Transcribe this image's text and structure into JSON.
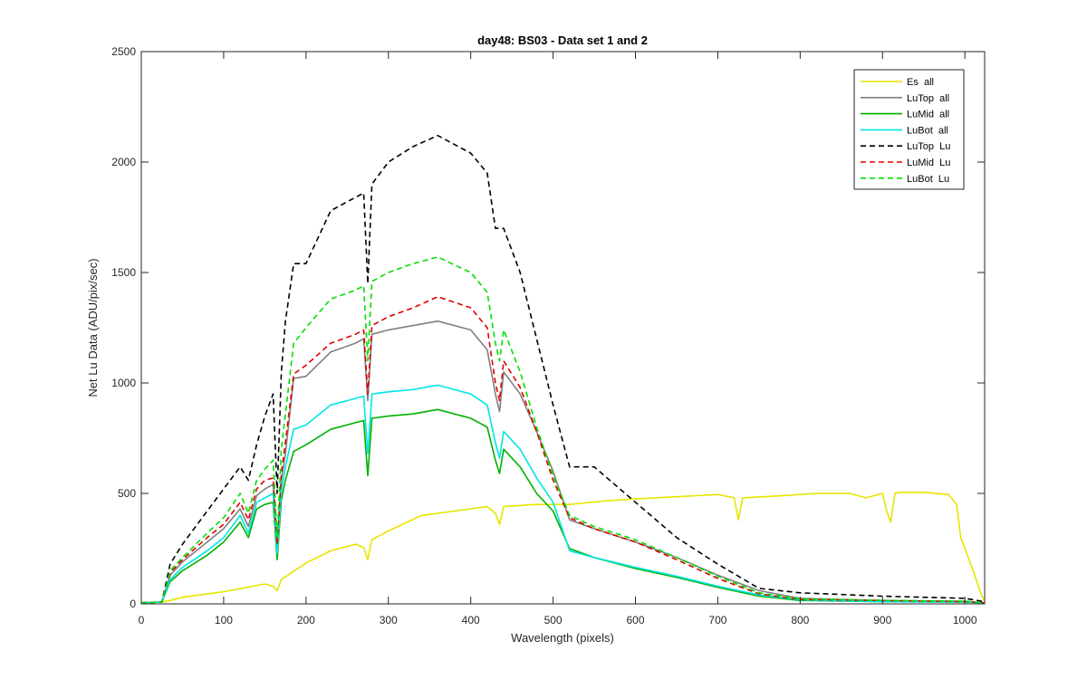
{
  "chart_data": {
    "type": "line",
    "title": "day48: BS03 - Data set 1 and 2",
    "xlabel": "Wavelength (pixels)",
    "ylabel": "Net Lu Data (ADU/pix/sec)",
    "xlim": [
      0,
      1024
    ],
    "ylim": [
      0,
      2500
    ],
    "xticks": [
      0,
      100,
      200,
      300,
      400,
      500,
      600,
      700,
      800,
      900,
      1000
    ],
    "yticks": [
      0,
      500,
      1000,
      1500,
      2000,
      2500
    ],
    "grid": false,
    "legend_position": "top-right",
    "series": [
      {
        "name": "Es  all",
        "color": "#e6e600",
        "style": "solid",
        "x": [
          0,
          25,
          35,
          50,
          100,
          150,
          160,
          165,
          170,
          200,
          230,
          260,
          270,
          275,
          280,
          300,
          340,
          380,
          420,
          430,
          435,
          440,
          480,
          520,
          560,
          600,
          650,
          700,
          720,
          725,
          730,
          780,
          820,
          860,
          880,
          900,
          905,
          910,
          915,
          920,
          950,
          980,
          990,
          995,
          1000,
          1010,
          1020,
          1024
        ],
        "y": [
          5,
          8,
          15,
          30,
          55,
          90,
          80,
          60,
          110,
          185,
          240,
          270,
          255,
          200,
          290,
          330,
          400,
          420,
          440,
          410,
          360,
          440,
          450,
          450,
          465,
          475,
          485,
          495,
          480,
          380,
          480,
          490,
          500,
          500,
          480,
          500,
          420,
          370,
          500,
          505,
          505,
          495,
          450,
          300,
          250,
          150,
          40,
          15
        ]
      },
      {
        "name": "LuTop  all",
        "color": "#808080",
        "style": "solid",
        "x": [
          0,
          25,
          35,
          50,
          80,
          100,
          120,
          130,
          140,
          150,
          160,
          165,
          170,
          175,
          185,
          200,
          230,
          260,
          270,
          275,
          280,
          300,
          330,
          360,
          400,
          420,
          430,
          435,
          440,
          460,
          480,
          500,
          520,
          550,
          600,
          650,
          700,
          750,
          800,
          900,
          1000,
          1024
        ],
        "y": [
          5,
          8,
          130,
          190,
          280,
          340,
          430,
          350,
          490,
          520,
          540,
          250,
          560,
          680,
          1020,
          1030,
          1140,
          1180,
          1200,
          920,
          1220,
          1240,
          1260,
          1280,
          1240,
          1150,
          950,
          870,
          1050,
          950,
          780,
          600,
          380,
          340,
          280,
          210,
          130,
          60,
          25,
          15,
          12,
          5
        ]
      },
      {
        "name": "LuMid  all",
        "color": "#00b000",
        "style": "solid",
        "x": [
          0,
          25,
          35,
          50,
          80,
          100,
          120,
          130,
          140,
          150,
          160,
          165,
          170,
          175,
          185,
          200,
          230,
          260,
          270,
          275,
          280,
          300,
          330,
          360,
          400,
          420,
          430,
          435,
          440,
          460,
          480,
          500,
          520,
          550,
          600,
          650,
          700,
          750,
          800,
          900,
          1000,
          1024
        ],
        "y": [
          5,
          8,
          100,
          150,
          220,
          280,
          370,
          300,
          430,
          450,
          460,
          200,
          470,
          560,
          690,
          720,
          790,
          820,
          830,
          580,
          840,
          850,
          860,
          880,
          840,
          800,
          650,
          590,
          700,
          620,
          500,
          420,
          250,
          210,
          160,
          120,
          75,
          35,
          15,
          10,
          8,
          4
        ]
      },
      {
        "name": "LuBot  all",
        "color": "#00e5e5",
        "style": "solid",
        "x": [
          0,
          25,
          35,
          50,
          80,
          100,
          120,
          130,
          140,
          150,
          160,
          165,
          170,
          175,
          185,
          200,
          230,
          260,
          270,
          275,
          280,
          300,
          330,
          360,
          400,
          420,
          430,
          435,
          440,
          460,
          480,
          500,
          520,
          550,
          600,
          650,
          700,
          750,
          800,
          900,
          1000,
          1024
        ],
        "y": [
          5,
          8,
          110,
          165,
          240,
          300,
          400,
          320,
          460,
          480,
          500,
          230,
          510,
          620,
          790,
          810,
          900,
          930,
          940,
          680,
          950,
          960,
          970,
          990,
          950,
          900,
          730,
          660,
          780,
          700,
          570,
          460,
          240,
          210,
          165,
          125,
          80,
          40,
          18,
          10,
          8,
          4
        ]
      },
      {
        "name": "LuTop  Lu",
        "color": "#000000",
        "style": "dashed",
        "x": [
          0,
          25,
          35,
          50,
          80,
          100,
          120,
          130,
          140,
          150,
          160,
          165,
          170,
          175,
          185,
          200,
          230,
          260,
          270,
          275,
          280,
          300,
          330,
          360,
          400,
          420,
          430,
          440,
          460,
          480,
          500,
          520,
          550,
          600,
          650,
          700,
          750,
          800,
          900,
          1000,
          1024
        ],
        "y": [
          5,
          8,
          180,
          270,
          420,
          520,
          620,
          560,
          720,
          850,
          950,
          500,
          1050,
          1280,
          1540,
          1540,
          1780,
          1840,
          1860,
          1450,
          1900,
          2000,
          2070,
          2120,
          2040,
          1950,
          1700,
          1700,
          1500,
          1200,
          900,
          620,
          620,
          460,
          300,
          180,
          70,
          50,
          35,
          25,
          10
        ]
      },
      {
        "name": "LuMid  Lu",
        "color": "#e00000",
        "style": "dashed",
        "x": [
          0,
          25,
          35,
          50,
          80,
          100,
          120,
          130,
          140,
          150,
          160,
          165,
          170,
          175,
          185,
          200,
          230,
          260,
          270,
          275,
          280,
          300,
          330,
          360,
          400,
          420,
          430,
          435,
          440,
          460,
          480,
          500,
          520,
          550,
          600,
          650,
          700,
          750,
          800,
          900,
          1000,
          1024
        ],
        "y": [
          5,
          8,
          140,
          200,
          300,
          360,
          460,
          380,
          520,
          560,
          570,
          270,
          590,
          730,
          1040,
          1080,
          1180,
          1220,
          1240,
          950,
          1260,
          1300,
          1340,
          1390,
          1340,
          1250,
          1000,
          920,
          1100,
          980,
          780,
          560,
          390,
          340,
          280,
          200,
          115,
          45,
          20,
          15,
          10,
          5
        ]
      },
      {
        "name": "LuBot  Lu",
        "color": "#00e000",
        "style": "dashed",
        "x": [
          0,
          25,
          35,
          50,
          80,
          100,
          120,
          130,
          140,
          150,
          160,
          165,
          170,
          175,
          185,
          200,
          230,
          260,
          270,
          275,
          280,
          300,
          330,
          360,
          400,
          420,
          430,
          435,
          440,
          460,
          480,
          500,
          520,
          550,
          600,
          650,
          700,
          750,
          800,
          900,
          1000,
          1024
        ],
        "y": [
          5,
          8,
          150,
          210,
          320,
          390,
          500,
          410,
          560,
          610,
          650,
          300,
          700,
          860,
          1180,
          1250,
          1380,
          1420,
          1440,
          1100,
          1460,
          1500,
          1540,
          1570,
          1500,
          1410,
          1180,
          1100,
          1240,
          1050,
          800,
          580,
          400,
          350,
          290,
          210,
          125,
          50,
          22,
          16,
          12,
          5
        ]
      }
    ]
  }
}
